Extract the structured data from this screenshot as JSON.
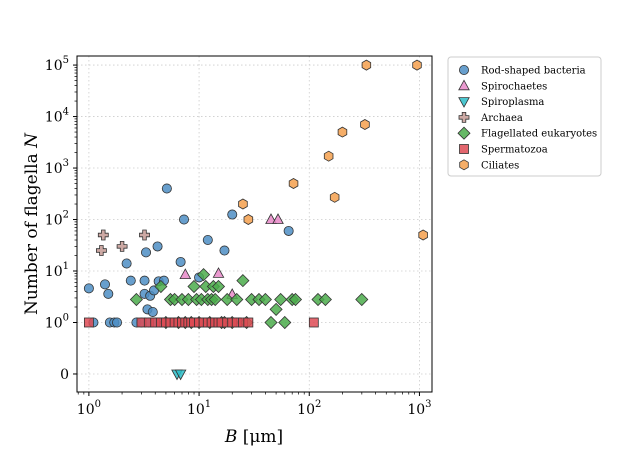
{
  "chart_data": {
    "type": "scatter",
    "title": "",
    "xlabel": {
      "var": "B",
      "unit": "[μm]"
    },
    "ylabel": {
      "text": "Number of flagella",
      "var": "N"
    },
    "xscale": "log",
    "yscale": "symlog",
    "xlim": [
      0.78,
      1300
    ],
    "ylim": [
      -0.35,
      150000
    ],
    "grid": true,
    "legend_position": "outside-right",
    "x_ticks": [
      {
        "value": 1,
        "base": "10",
        "exp": "0"
      },
      {
        "value": 10,
        "base": "10",
        "exp": "1"
      },
      {
        "value": 100,
        "base": "10",
        "exp": "2"
      },
      {
        "value": 1000,
        "base": "10",
        "exp": "3"
      }
    ],
    "y_ticks": [
      {
        "value": 0,
        "label": "0"
      },
      {
        "value": 1,
        "base": "10",
        "exp": "0"
      },
      {
        "value": 10,
        "base": "10",
        "exp": "1"
      },
      {
        "value": 100,
        "base": "10",
        "exp": "2"
      },
      {
        "value": 1000,
        "base": "10",
        "exp": "3"
      },
      {
        "value": 10000,
        "base": "10",
        "exp": "4"
      },
      {
        "value": 100000,
        "base": "10",
        "exp": "5"
      }
    ],
    "series": [
      {
        "name": "Rod-shaped bacteria",
        "marker": "circle",
        "color": "#4d8ec4",
        "points": [
          [
            1.0,
            4.6
          ],
          [
            1.1,
            1
          ],
          [
            1.4,
            5.5
          ],
          [
            1.5,
            3.6
          ],
          [
            1.55,
            1
          ],
          [
            1.7,
            1
          ],
          [
            1.8,
            1
          ],
          [
            2.2,
            14
          ],
          [
            2.4,
            6.5
          ],
          [
            2.7,
            1
          ],
          [
            3.0,
            1
          ],
          [
            3.2,
            6.5
          ],
          [
            3.2,
            3.6
          ],
          [
            3.3,
            23
          ],
          [
            3.4,
            1.8
          ],
          [
            3.5,
            1
          ],
          [
            3.6,
            3.3
          ],
          [
            3.8,
            1.6
          ],
          [
            3.9,
            4.2
          ],
          [
            4.0,
            1
          ],
          [
            4.2,
            30
          ],
          [
            4.3,
            6.3
          ],
          [
            4.5,
            1
          ],
          [
            4.6,
            1
          ],
          [
            4.8,
            6.5
          ],
          [
            5.1,
            400
          ],
          [
            5.5,
            1
          ],
          [
            6.0,
            1
          ],
          [
            6.8,
            15
          ],
          [
            7.3,
            100
          ],
          [
            8.5,
            1
          ],
          [
            10.0,
            7.5
          ],
          [
            12.0,
            40
          ],
          [
            13.0,
            1
          ],
          [
            16.0,
            1
          ],
          [
            17.0,
            25
          ],
          [
            20.0,
            125
          ],
          [
            23.0,
            1
          ],
          [
            65.0,
            60
          ]
        ]
      },
      {
        "name": "Spirochaetes",
        "marker": "triangle-up",
        "color": "#e888c8",
        "points": [
          [
            7.5,
            8.5
          ],
          [
            15.0,
            9
          ],
          [
            20.0,
            3.5
          ],
          [
            45.0,
            100
          ],
          [
            52.0,
            100
          ]
        ]
      },
      {
        "name": "Spiroplasma",
        "marker": "triangle-down",
        "color": "#2bbdc8",
        "points": [
          [
            6.3,
            0
          ],
          [
            6.8,
            0
          ]
        ]
      },
      {
        "name": "Archaea",
        "marker": "plus",
        "color": "#c49a94",
        "points": [
          [
            1.3,
            25
          ],
          [
            1.35,
            50
          ],
          [
            2.0,
            30
          ],
          [
            3.2,
            50
          ]
        ]
      },
      {
        "name": "Flagellated eukaryotes",
        "marker": "diamond",
        "color": "#4bab4b",
        "points": [
          [
            2.7,
            2.8
          ],
          [
            4.5,
            5
          ],
          [
            5.0,
            1
          ],
          [
            5.5,
            2.8
          ],
          [
            6.0,
            2.8
          ],
          [
            6.5,
            1
          ],
          [
            7.0,
            2.8
          ],
          [
            7.5,
            1
          ],
          [
            8.0,
            2.8
          ],
          [
            8.5,
            1
          ],
          [
            9.0,
            5
          ],
          [
            9.5,
            2.8
          ],
          [
            10.0,
            1
          ],
          [
            10.5,
            2.8
          ],
          [
            11.0,
            8.5
          ],
          [
            11.5,
            5
          ],
          [
            12.0,
            2.8
          ],
          [
            12.5,
            1
          ],
          [
            13.0,
            2.8
          ],
          [
            13.5,
            5
          ],
          [
            14.0,
            2.8
          ],
          [
            15.0,
            5
          ],
          [
            16.0,
            1
          ],
          [
            17.0,
            1
          ],
          [
            18.0,
            2.8
          ],
          [
            20.0,
            1
          ],
          [
            22.0,
            2.8
          ],
          [
            25.0,
            6.5
          ],
          [
            27.0,
            1
          ],
          [
            30.0,
            2.8
          ],
          [
            35.0,
            2.8
          ],
          [
            40.0,
            2.8
          ],
          [
            45.0,
            1
          ],
          [
            50.0,
            1.8
          ],
          [
            55.0,
            2.8
          ],
          [
            60.0,
            1
          ],
          [
            70.0,
            2.8
          ],
          [
            75.0,
            2.8
          ],
          [
            120.0,
            2.8
          ],
          [
            140.0,
            2.8
          ],
          [
            300.0,
            2.8
          ]
        ]
      },
      {
        "name": "Spermatozoa",
        "marker": "square",
        "color": "#de4b55",
        "points": [
          [
            1.0,
            1
          ],
          [
            3.0,
            1
          ],
          [
            3.5,
            1
          ],
          [
            4.0,
            1
          ],
          [
            4.5,
            1
          ],
          [
            5.0,
            1
          ],
          [
            5.5,
            1
          ],
          [
            6.0,
            1
          ],
          [
            6.5,
            1
          ],
          [
            7.0,
            1
          ],
          [
            7.5,
            1
          ],
          [
            8.0,
            1
          ],
          [
            8.5,
            1
          ],
          [
            9.0,
            1
          ],
          [
            10.0,
            1
          ],
          [
            11.0,
            1
          ],
          [
            12.0,
            1
          ],
          [
            13.0,
            1
          ],
          [
            14.0,
            1
          ],
          [
            15.0,
            1
          ],
          [
            16.0,
            1
          ],
          [
            18.0,
            1
          ],
          [
            20.0,
            1
          ],
          [
            22.0,
            1
          ],
          [
            25.0,
            1
          ],
          [
            28.0,
            1
          ],
          [
            110.0,
            1
          ]
        ]
      },
      {
        "name": "Ciliates",
        "marker": "hexagon",
        "color": "#f5a04e",
        "points": [
          [
            25.0,
            200
          ],
          [
            28.0,
            100
          ],
          [
            72.0,
            500
          ],
          [
            150.0,
            1700
          ],
          [
            170.0,
            270
          ],
          [
            200.0,
            5000
          ],
          [
            320.0,
            7000
          ],
          [
            330.0,
            100000
          ],
          [
            950.0,
            100000
          ],
          [
            1080.0,
            50
          ]
        ]
      }
    ]
  }
}
